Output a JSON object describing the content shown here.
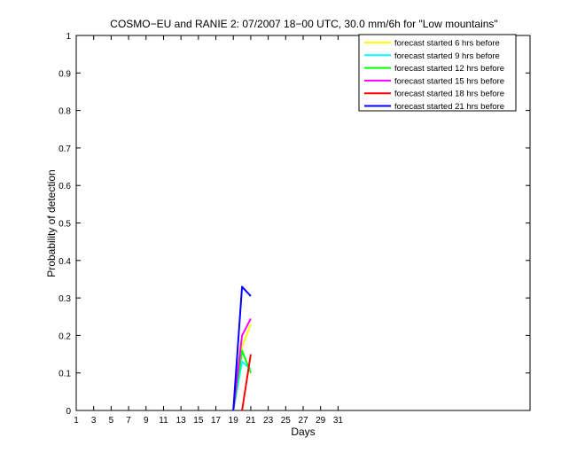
{
  "chart_data": {
    "type": "line",
    "title": "COSMO−EU and RANIE 2: 07/2007 18−00 UTC, 30.0 mm/6h for \"Low mountains\"",
    "xlabel": "Days",
    "ylabel": "Probability of detection",
    "xlim": [
      1,
      53
    ],
    "ylim": [
      0,
      1
    ],
    "xticks": [
      1,
      3,
      5,
      7,
      9,
      11,
      13,
      15,
      17,
      19,
      21,
      23,
      25,
      27,
      29,
      31
    ],
    "yticks": [
      0,
      0.1,
      0.2,
      0.3,
      0.4,
      0.5,
      0.6,
      0.7,
      0.8,
      0.9,
      1
    ],
    "ytick_labels": [
      "0",
      "0.1",
      "0.2",
      "0.3",
      "0.4",
      "0.5",
      "0.6",
      "0.7",
      "0.8",
      "0.9",
      "1"
    ],
    "legend_position": "top-right",
    "series": [
      {
        "name": "forecast started 6 hrs before",
        "color": "#ffff00",
        "x": [
          19,
          20,
          21
        ],
        "y": [
          0,
          0.17,
          0.23
        ]
      },
      {
        "name": "forecast started 9 hrs before",
        "color": "#00ffff",
        "x": [
          19,
          20,
          21
        ],
        "y": [
          0,
          0.13,
          0.11
        ]
      },
      {
        "name": "forecast started 12 hrs before",
        "color": "#00ff00",
        "x": [
          19,
          20,
          21
        ],
        "y": [
          0,
          0.16,
          0.1
        ]
      },
      {
        "name": "forecast started 15 hrs before",
        "color": "#ff00ff",
        "x": [
          19,
          20,
          21
        ],
        "y": [
          0,
          0.2,
          0.245
        ]
      },
      {
        "name": "forecast started 18 hrs before",
        "color": "#ff0000",
        "x": [
          20,
          21
        ],
        "y": [
          0,
          0.15
        ]
      },
      {
        "name": "forecast started 21 hrs before",
        "color": "#0000ff",
        "x": [
          19,
          20,
          21
        ],
        "y": [
          0,
          0.33,
          0.305
        ]
      }
    ]
  }
}
